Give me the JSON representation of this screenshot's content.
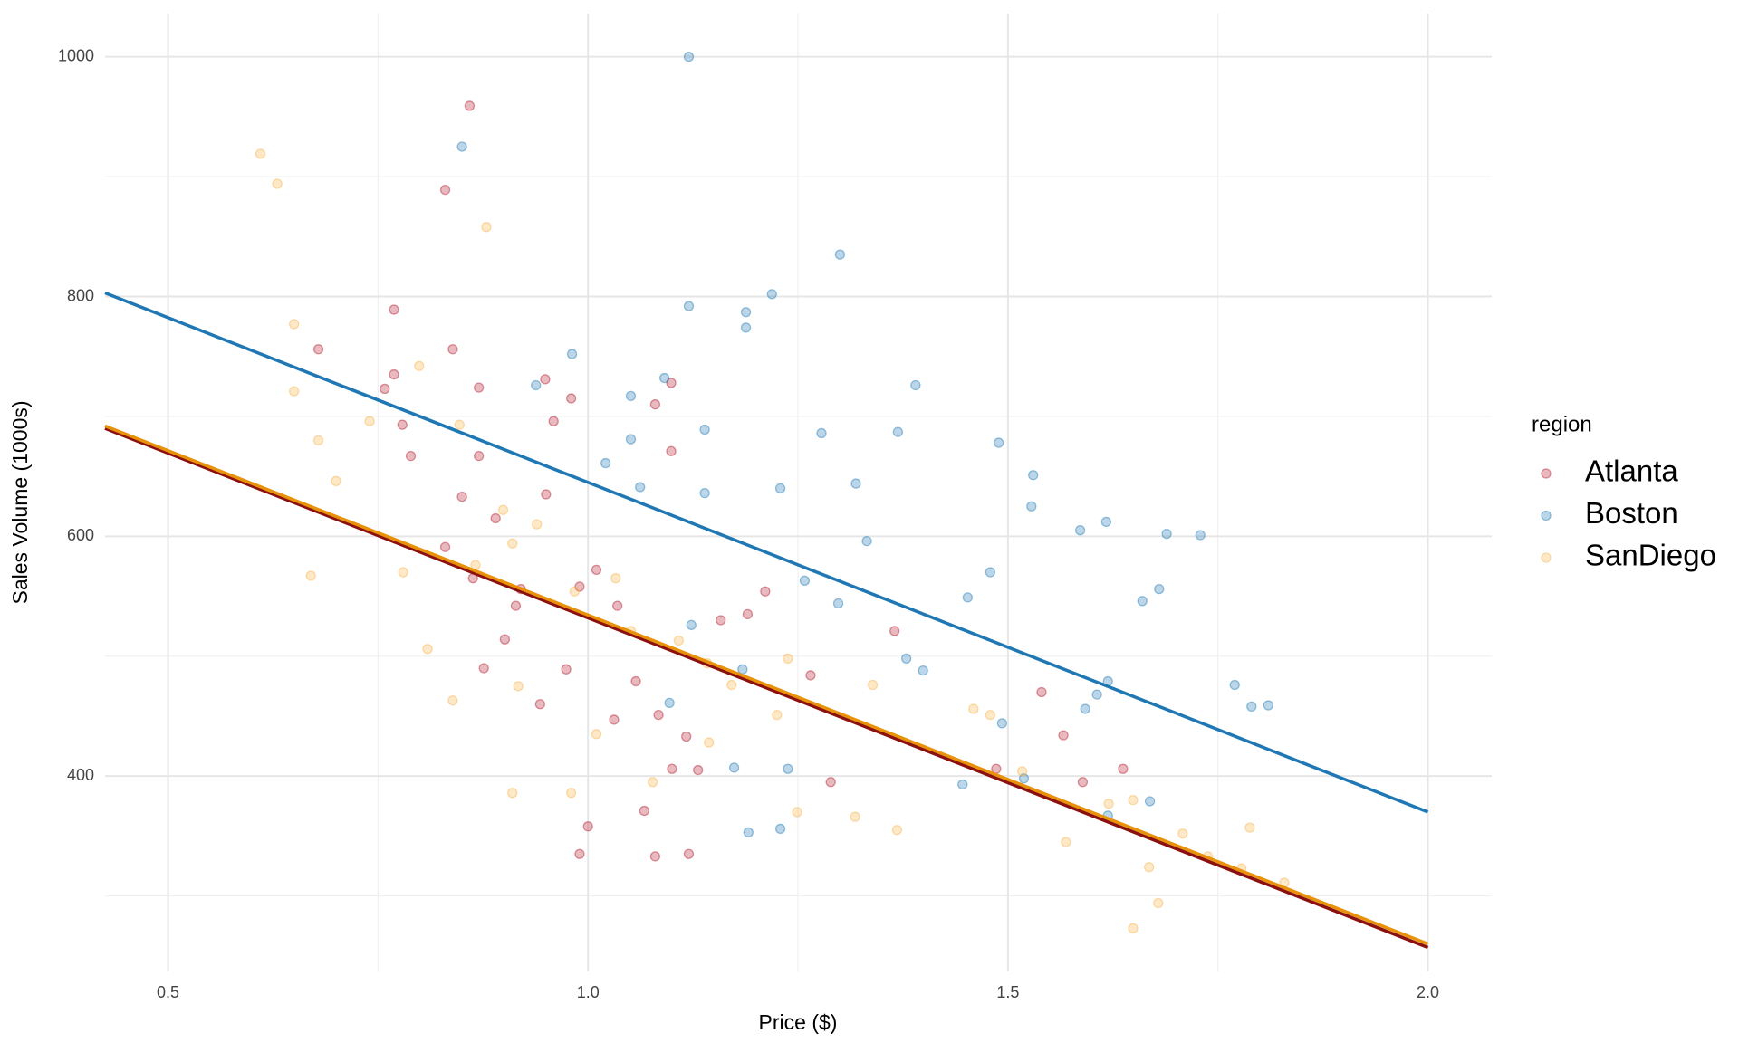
{
  "chart_data": {
    "type": "scatter",
    "x_label": "Price ($)",
    "y_label": "Sales Volume (1000s)",
    "legend_title": "region",
    "xlim": [
      0.425,
      2.076
    ],
    "ylim": [
      237,
      1036
    ],
    "xticks": [
      {
        "value": 0.5,
        "label": "0.5"
      },
      {
        "value": 1.0,
        "label": "1.0"
      },
      {
        "value": 1.5,
        "label": "1.5"
      },
      {
        "value": 2.0,
        "label": "2.0"
      }
    ],
    "yticks": [
      400,
      600,
      800,
      1000
    ],
    "xminorticks": [
      0.75,
      1.25,
      1.75
    ],
    "yminorticks": [
      300,
      500,
      700,
      900
    ],
    "grid": true,
    "legend": "right",
    "series": [
      {
        "name": "Atlanta",
        "color": "#b2182b",
        "line_color": "#8b1010",
        "x": [
          0.859,
          0.83,
          0.839,
          0.679,
          0.769,
          0.769,
          0.758,
          0.779,
          0.87,
          0.95,
          0.98,
          0.959,
          0.949,
          1.099,
          1.08,
          1.099,
          0.85,
          0.89,
          0.87,
          0.789,
          0.83,
          0.863,
          0.901,
          0.92,
          0.974,
          0.99,
          1.01,
          1.035,
          1.057,
          1.084,
          1.117,
          1.131,
          1.067,
          1.08,
          1.12,
          0.99,
          1.0,
          1.158,
          1.211,
          1.265,
          1.289,
          1.365,
          1.54,
          1.566,
          1.486,
          1.637,
          1.589,
          0.914,
          0.876,
          1.1,
          1.19,
          1.031,
          0.943
        ],
        "values": [
          959,
          889,
          756,
          756,
          789,
          735,
          723,
          693,
          724,
          635,
          715,
          696,
          731,
          728,
          710,
          671,
          633,
          615,
          667,
          667,
          591,
          565,
          514,
          556,
          489,
          558,
          572,
          542,
          479,
          451,
          433,
          405,
          371,
          333,
          335,
          335,
          358,
          530,
          554,
          484,
          395,
          521,
          470,
          434,
          406,
          406,
          395,
          542,
          490,
          406,
          535,
          447,
          460
        ],
        "fit_x": [
          0.425,
          2.0
        ],
        "fit_values": [
          690,
          257
        ]
      },
      {
        "name": "Boston",
        "color": "#1f78b4",
        "line_color": "#1f78b4",
        "x": [
          1.12,
          0.85,
          1.3,
          1.219,
          1.12,
          1.188,
          1.188,
          0.981,
          0.938,
          1.091,
          1.39,
          1.051,
          1.369,
          1.139,
          1.278,
          1.489,
          1.051,
          1.062,
          1.139,
          1.021,
          1.229,
          1.319,
          1.528,
          1.53,
          1.586,
          1.617,
          1.689,
          1.729,
          1.68,
          1.66,
          1.479,
          1.452,
          1.379,
          1.399,
          1.592,
          1.606,
          1.669,
          1.77,
          1.79,
          1.81,
          1.493,
          1.446,
          1.519,
          1.619,
          1.191,
          1.229,
          1.238,
          1.174,
          1.097,
          1.123,
          1.184,
          1.298,
          1.332,
          1.258,
          1.619
        ],
        "values": [
          1000,
          925,
          835,
          802,
          792,
          787,
          774,
          752,
          726,
          732,
          726,
          717,
          687,
          689,
          686,
          678,
          681,
          641,
          636,
          661,
          640,
          644,
          625,
          651,
          605,
          612,
          602,
          601,
          556,
          546,
          570,
          549,
          498,
          488,
          456,
          468,
          379,
          476,
          458,
          459,
          444,
          393,
          398,
          367,
          353,
          356,
          406,
          407,
          461,
          526,
          489,
          544,
          596,
          563,
          479
        ],
        "fit_x": [
          0.425,
          2.0
        ],
        "fit_values": [
          803,
          370
        ]
      },
      {
        "name": "SanDiego",
        "color": "#f9b24a",
        "line_color": "#e8920a",
        "x": [
          0.61,
          0.63,
          0.65,
          0.65,
          0.679,
          0.67,
          0.7,
          0.74,
          0.799,
          0.847,
          0.879,
          0.78,
          0.809,
          0.839,
          0.91,
          0.917,
          0.91,
          0.98,
          1.01,
          1.051,
          1.108,
          1.077,
          1.144,
          1.171,
          1.238,
          1.249,
          1.318,
          1.368,
          1.339,
          1.479,
          1.517,
          1.459,
          1.569,
          1.649,
          1.668,
          1.679,
          1.649,
          1.708,
          1.788,
          1.829,
          1.738,
          1.778,
          1.62,
          0.866,
          0.939,
          0.984,
          0.899,
          1.033,
          1.142,
          1.225
        ],
        "values": [
          919,
          894,
          777,
          721,
          680,
          567,
          646,
          696,
          742,
          693,
          858,
          570,
          506,
          463,
          594,
          475,
          386,
          386,
          435,
          521,
          513,
          395,
          428,
          476,
          498,
          370,
          366,
          355,
          476,
          451,
          404,
          456,
          345,
          380,
          324,
          294,
          273,
          352,
          357,
          311,
          333,
          323,
          377,
          576,
          610,
          554,
          622,
          565,
          494,
          451
        ],
        "fit_x": [
          0.425,
          2.0
        ],
        "fit_values": [
          692,
          260
        ]
      }
    ]
  }
}
